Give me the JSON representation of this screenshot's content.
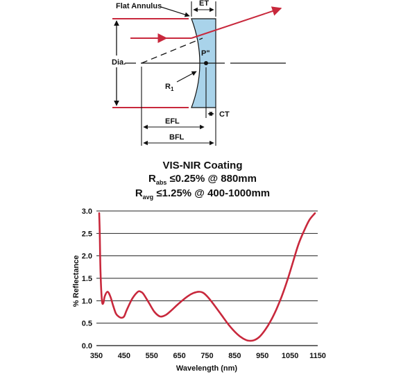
{
  "diagram": {
    "labels": {
      "flat_annulus": "Flat Annulus",
      "et": "ET",
      "dia": "Dia.",
      "p_double_prime": "P\"",
      "r1": "R",
      "r1_sub": "1",
      "ct": "CT",
      "efl": "EFL",
      "bfl": "BFL"
    },
    "colors": {
      "lens_fill": "#a9d3ea",
      "ray": "#c8283c",
      "line": "#111111"
    }
  },
  "coating": {
    "title": "VIS-NIR Coating",
    "spec1": {
      "symbol": "R",
      "sub": "abs",
      "text": " ≤0.25% @ 880mm"
    },
    "spec2": {
      "symbol": "R",
      "sub": "avg",
      "text": " ≤1.25% @ 400-1000mm"
    }
  },
  "chart_data": {
    "type": "line",
    "xlabel": "Wavelength (nm)",
    "ylabel": "% Reflectance",
    "xlim": [
      350,
      1150
    ],
    "ylim": [
      0,
      3
    ],
    "x_ticks": [
      350,
      450,
      550,
      650,
      750,
      850,
      950,
      1050,
      1150
    ],
    "y_ticks": [
      0.0,
      0.5,
      1.0,
      1.5,
      2.0,
      2.5,
      3.0
    ],
    "y_tick_labels": [
      "0.0",
      "0.5",
      "1.0",
      "1.5",
      "2.0",
      "2.5",
      "3.0"
    ],
    "grid": "horizontal",
    "line_color": "#c8283c",
    "series": [
      {
        "x": [
          360,
          362,
          365,
          370,
          375,
          380,
          390,
          400,
          410,
          420,
          430,
          440,
          450,
          460,
          480,
          500,
          510,
          520,
          540,
          560,
          580,
          600,
          620,
          650,
          680,
          700,
          720,
          735,
          750,
          770,
          800,
          830,
          860,
          880,
          900,
          920,
          940,
          960,
          980,
          1000,
          1020,
          1040,
          1060,
          1080,
          1100,
          1120,
          1140
        ],
        "y": [
          2.95,
          2.5,
          1.6,
          1.0,
          0.95,
          1.1,
          1.2,
          1.1,
          0.9,
          0.72,
          0.65,
          0.62,
          0.65,
          0.8,
          1.05,
          1.2,
          1.2,
          1.15,
          0.95,
          0.75,
          0.65,
          0.68,
          0.78,
          0.95,
          1.1,
          1.17,
          1.2,
          1.18,
          1.1,
          0.95,
          0.7,
          0.45,
          0.25,
          0.16,
          0.11,
          0.12,
          0.2,
          0.35,
          0.55,
          0.8,
          1.1,
          1.45,
          1.85,
          2.25,
          2.55,
          2.8,
          2.95
        ]
      }
    ]
  }
}
